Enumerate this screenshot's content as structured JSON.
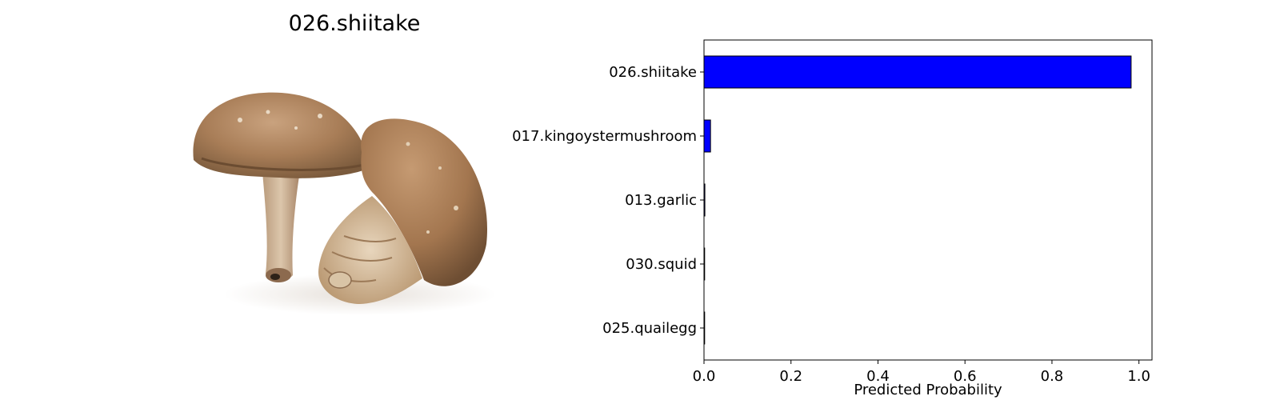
{
  "image_panel": {
    "title": "026.shiitake",
    "photo_icon": "shiitake-mushroom-photo"
  },
  "chart_data": {
    "type": "bar",
    "orientation": "horizontal",
    "categories": [
      "026.shiitake",
      "017.kingoystermushroom",
      "013.garlic",
      "030.squid",
      "025.quailegg"
    ],
    "values": [
      0.982,
      0.015,
      0.002,
      0.0005,
      0.0003
    ],
    "xlabel": "Predicted Probability",
    "xlim": [
      0.0,
      1.03
    ],
    "xticks": [
      "0.0",
      "0.2",
      "0.4",
      "0.6",
      "0.8",
      "1.0"
    ],
    "grid": false,
    "colors": {
      "bar_fill": "#0000ff",
      "bar_edge": "#000000"
    }
  }
}
